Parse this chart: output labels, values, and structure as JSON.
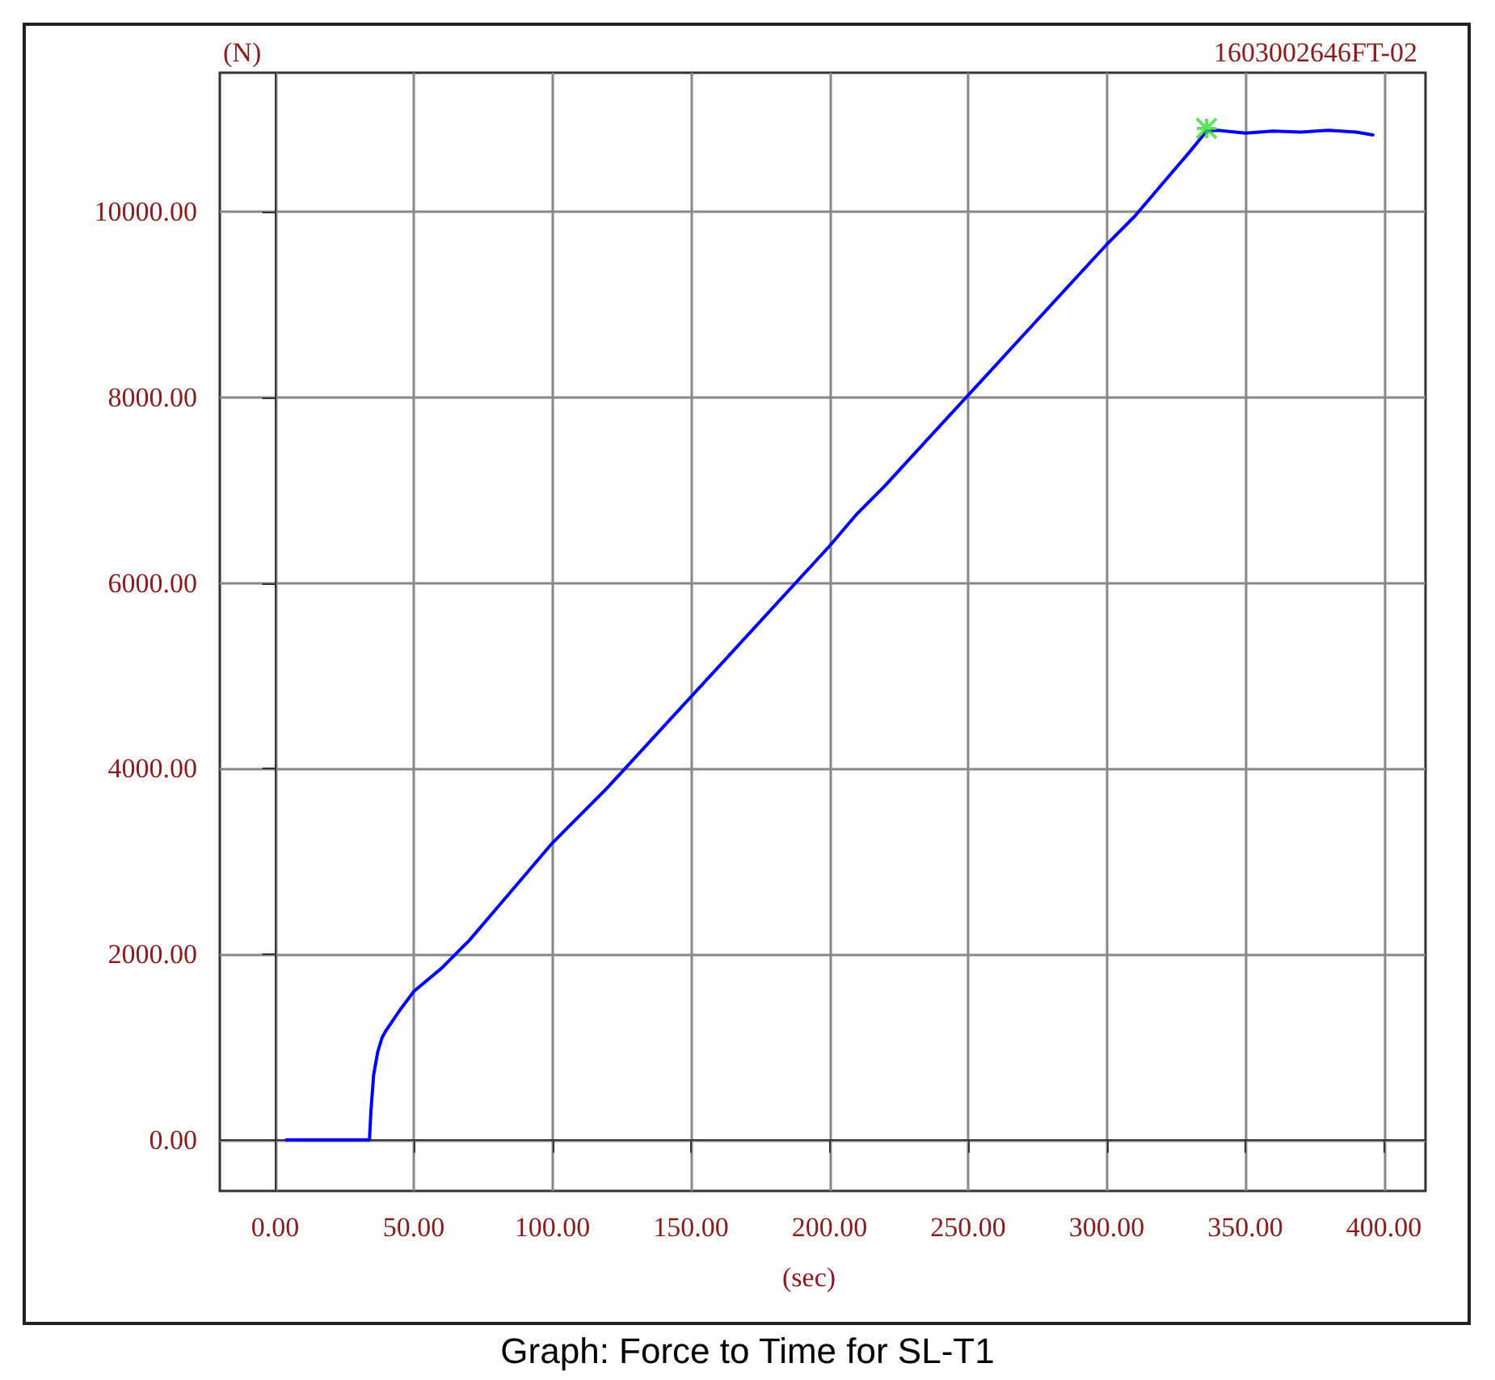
{
  "chart_data": {
    "type": "line",
    "title": "Graph: Force to Time for SL-T1",
    "xlabel": "(sec)",
    "ylabel": "(N)",
    "annotations": [
      "1603002646FT-02"
    ],
    "xlim": [
      -20,
      415
    ],
    "xticks": [
      {
        "value": 0,
        "label": "0.00"
      },
      {
        "value": 50,
        "label": "50.00"
      },
      {
        "value": 100,
        "label": "100.00"
      },
      {
        "value": 150,
        "label": "150.00"
      },
      {
        "value": 200,
        "label": "200.00"
      },
      {
        "value": 250,
        "label": "250.00"
      },
      {
        "value": 300,
        "label": "300.00"
      },
      {
        "value": 350,
        "label": "350.00"
      },
      {
        "value": 400,
        "label": "400.00"
      }
    ],
    "ylim": [
      -550,
      11500
    ],
    "yticks": [
      {
        "value": 0,
        "label": "0.00"
      },
      {
        "value": 2000,
        "label": "2000.00"
      },
      {
        "value": 4000,
        "label": "4000.00"
      },
      {
        "value": 6000,
        "label": "6000.00"
      },
      {
        "value": 8000,
        "label": "8000.00"
      },
      {
        "value": 10000,
        "label": "10000.00"
      }
    ],
    "grid": true,
    "marker": "none",
    "line_style": "solid",
    "series": [
      {
        "color": "#0000ff",
        "x": [
          4,
          10,
          20,
          30,
          34,
          34.5,
          35.5,
          37,
          38.5,
          40,
          45,
          50,
          60,
          70,
          80,
          90,
          100,
          120,
          140,
          160,
          180,
          200,
          210,
          220,
          240,
          260,
          280,
          300,
          310,
          320,
          330,
          336,
          340,
          350,
          360,
          370,
          380,
          390,
          396
        ],
        "values": [
          0,
          0,
          0,
          0,
          0,
          300,
          700,
          950,
          1100,
          1180,
          1400,
          1600,
          1850,
          2150,
          2500,
          2850,
          3200,
          3800,
          4450,
          5100,
          5750,
          6400,
          6750,
          7050,
          7700,
          8350,
          9000,
          9650,
          9950,
          10300,
          10650,
          10870,
          10880,
          10850,
          10870,
          10860,
          10880,
          10860,
          10830
        ]
      },
      {
        "type": "scatter",
        "color": "#33dd33",
        "marker": "cross",
        "x": [
          336
        ],
        "values": [
          10900
        ]
      }
    ]
  }
}
